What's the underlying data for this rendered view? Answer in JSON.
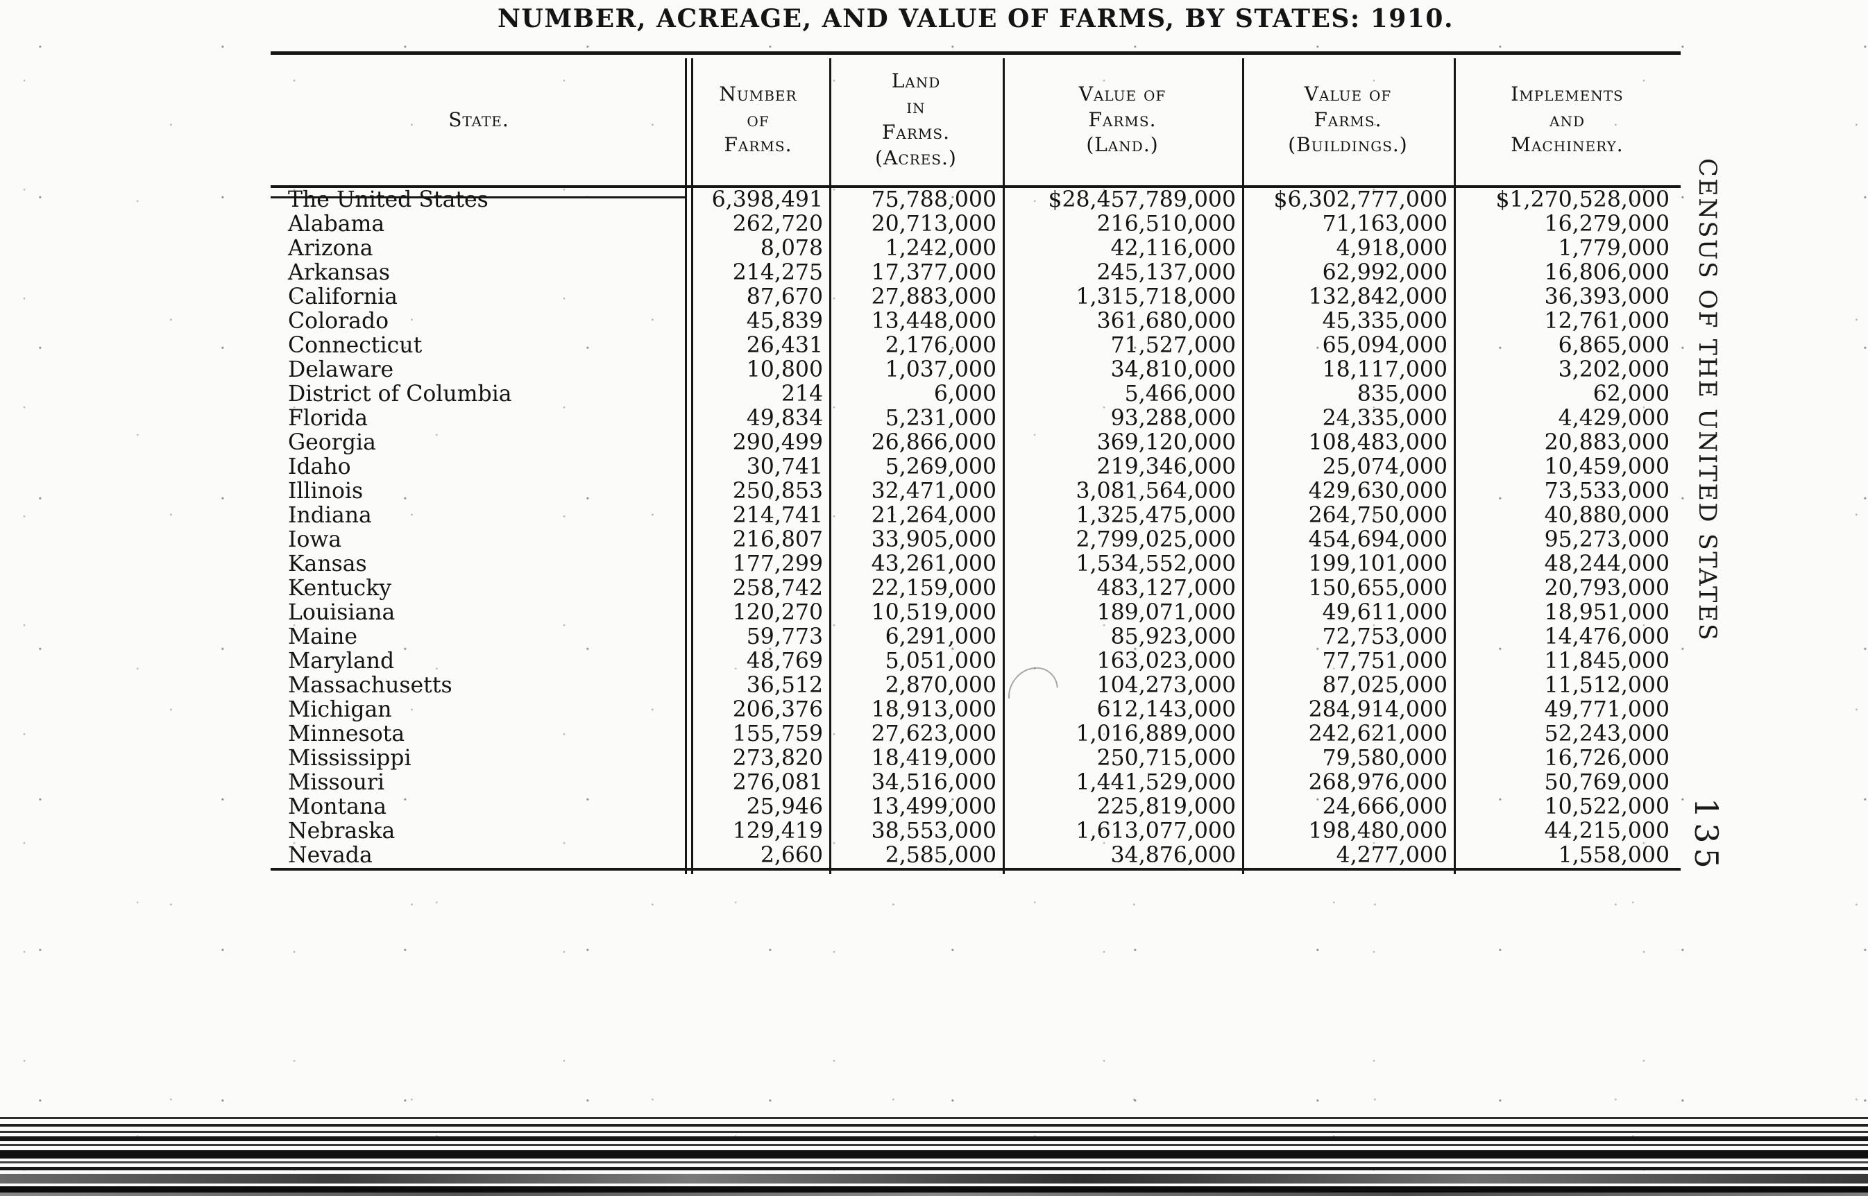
{
  "document": {
    "title": "NUMBER, ACREAGE, AND VALUE OF FARMS, BY STATES: 1910.",
    "side_caption": "CENSUS OF THE UNITED STATES",
    "page_number": "135"
  },
  "table": {
    "columns": [
      {
        "key": "state",
        "label": "State."
      },
      {
        "key": "farms",
        "label": "Number\nof\nFarms."
      },
      {
        "key": "acres",
        "label": "Land\nin\nFarms.\n(Acres.)"
      },
      {
        "key": "land",
        "label": "Value of\nFarms.\n(Land.)"
      },
      {
        "key": "buildings",
        "label": "Value of\nFarms.\n(Buildings.)"
      },
      {
        "key": "implements",
        "label": "Implements\nand\nMachinery."
      }
    ],
    "rows": [
      {
        "state": "The United States",
        "farms": "6,398,491",
        "acres": "75,788,000",
        "land": "$28,457,789,000",
        "buildings": "$6,302,777,000",
        "implements": "$1,270,528,000"
      },
      {
        "state": "Alabama",
        "farms": "262,720",
        "acres": "20,713,000",
        "land": "216,510,000",
        "buildings": "71,163,000",
        "implements": "16,279,000"
      },
      {
        "state": "Arizona",
        "farms": "8,078",
        "acres": "1,242,000",
        "land": "42,116,000",
        "buildings": "4,918,000",
        "implements": "1,779,000"
      },
      {
        "state": "Arkansas",
        "farms": "214,275",
        "acres": "17,377,000",
        "land": "245,137,000",
        "buildings": "62,992,000",
        "implements": "16,806,000"
      },
      {
        "state": "California",
        "farms": "87,670",
        "acres": "27,883,000",
        "land": "1,315,718,000",
        "buildings": "132,842,000",
        "implements": "36,393,000"
      },
      {
        "state": "Colorado",
        "farms": "45,839",
        "acres": "13,448,000",
        "land": "361,680,000",
        "buildings": "45,335,000",
        "implements": "12,761,000"
      },
      {
        "state": "Connecticut",
        "farms": "26,431",
        "acres": "2,176,000",
        "land": "71,527,000",
        "buildings": "65,094,000",
        "implements": "6,865,000"
      },
      {
        "state": "Delaware",
        "farms": "10,800",
        "acres": "1,037,000",
        "land": "34,810,000",
        "buildings": "18,117,000",
        "implements": "3,202,000"
      },
      {
        "state": "District of Columbia",
        "farms": "214",
        "acres": "6,000",
        "land": "5,466,000",
        "buildings": "835,000",
        "implements": "62,000"
      },
      {
        "state": "Florida",
        "farms": "49,834",
        "acres": "5,231,000",
        "land": "93,288,000",
        "buildings": "24,335,000",
        "implements": "4,429,000"
      },
      {
        "state": "Georgia",
        "farms": "290,499",
        "acres": "26,866,000",
        "land": "369,120,000",
        "buildings": "108,483,000",
        "implements": "20,883,000"
      },
      {
        "state": "Idaho",
        "farms": "30,741",
        "acres": "5,269,000",
        "land": "219,346,000",
        "buildings": "25,074,000",
        "implements": "10,459,000"
      },
      {
        "state": "Illinois",
        "farms": "250,853",
        "acres": "32,471,000",
        "land": "3,081,564,000",
        "buildings": "429,630,000",
        "implements": "73,533,000"
      },
      {
        "state": "Indiana",
        "farms": "214,741",
        "acres": "21,264,000",
        "land": "1,325,475,000",
        "buildings": "264,750,000",
        "implements": "40,880,000"
      },
      {
        "state": "Iowa",
        "farms": "216,807",
        "acres": "33,905,000",
        "land": "2,799,025,000",
        "buildings": "454,694,000",
        "implements": "95,273,000"
      },
      {
        "state": "Kansas",
        "farms": "177,299",
        "acres": "43,261,000",
        "land": "1,534,552,000",
        "buildings": "199,101,000",
        "implements": "48,244,000"
      },
      {
        "state": "Kentucky",
        "farms": "258,742",
        "acres": "22,159,000",
        "land": "483,127,000",
        "buildings": "150,655,000",
        "implements": "20,793,000"
      },
      {
        "state": "Louisiana",
        "farms": "120,270",
        "acres": "10,519,000",
        "land": "189,071,000",
        "buildings": "49,611,000",
        "implements": "18,951,000"
      },
      {
        "state": "Maine",
        "farms": "59,773",
        "acres": "6,291,000",
        "land": "85,923,000",
        "buildings": "72,753,000",
        "implements": "14,476,000"
      },
      {
        "state": "Maryland",
        "farms": "48,769",
        "acres": "5,051,000",
        "land": "163,023,000",
        "buildings": "77,751,000",
        "implements": "11,845,000"
      },
      {
        "state": "Massachusetts",
        "farms": "36,512",
        "acres": "2,870,000",
        "land": "104,273,000",
        "buildings": "87,025,000",
        "implements": "11,512,000"
      },
      {
        "state": "Michigan",
        "farms": "206,376",
        "acres": "18,913,000",
        "land": "612,143,000",
        "buildings": "284,914,000",
        "implements": "49,771,000"
      },
      {
        "state": "Minnesota",
        "farms": "155,759",
        "acres": "27,623,000",
        "land": "1,016,889,000",
        "buildings": "242,621,000",
        "implements": "52,243,000"
      },
      {
        "state": "Mississippi",
        "farms": "273,820",
        "acres": "18,419,000",
        "land": "250,715,000",
        "buildings": "79,580,000",
        "implements": "16,726,000"
      },
      {
        "state": "Missouri",
        "farms": "276,081",
        "acres": "34,516,000",
        "land": "1,441,529,000",
        "buildings": "268,976,000",
        "implements": "50,769,000"
      },
      {
        "state": "Montana",
        "farms": "25,946",
        "acres": "13,499,000",
        "land": "225,819,000",
        "buildings": "24,666,000",
        "implements": "10,522,000"
      },
      {
        "state": "Nebraska",
        "farms": "129,419",
        "acres": "38,553,000",
        "land": "1,613,077,000",
        "buildings": "198,480,000",
        "implements": "44,215,000"
      },
      {
        "state": "Nevada",
        "farms": "2,660",
        "acres": "2,585,000",
        "land": "34,876,000",
        "buildings": "4,277,000",
        "implements": "1,558,000"
      }
    ]
  }
}
